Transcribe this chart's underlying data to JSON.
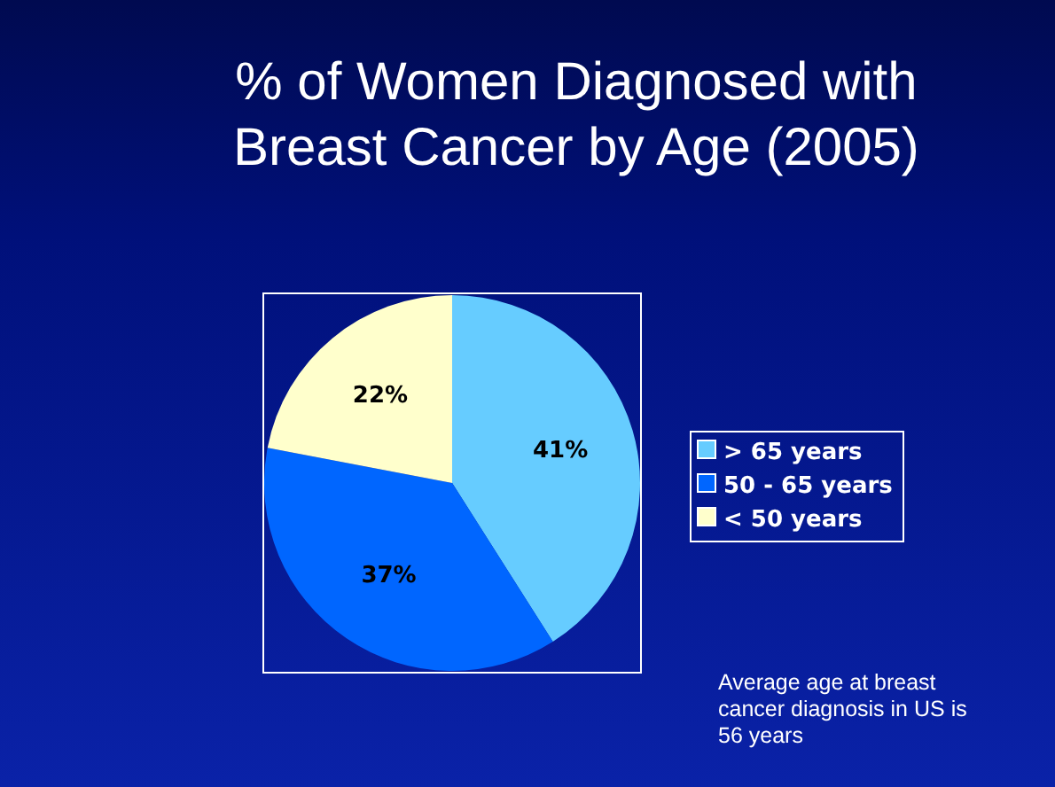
{
  "chart_data": {
    "type": "pie",
    "title": "% of Women Diagnosed with Breast Cancer by Age (2005)",
    "categories": [
      "> 65 years",
      "50 - 65 years",
      "< 50 years"
    ],
    "values": [
      41,
      37,
      22
    ],
    "colors": [
      "#66ccff",
      "#0066ff",
      "#ffffcc"
    ],
    "value_labels": [
      "41%",
      "37%",
      "22%"
    ],
    "legend": "right",
    "annotations": [
      "Average age at breast cancer diagnosis in US is 56 years"
    ]
  }
}
